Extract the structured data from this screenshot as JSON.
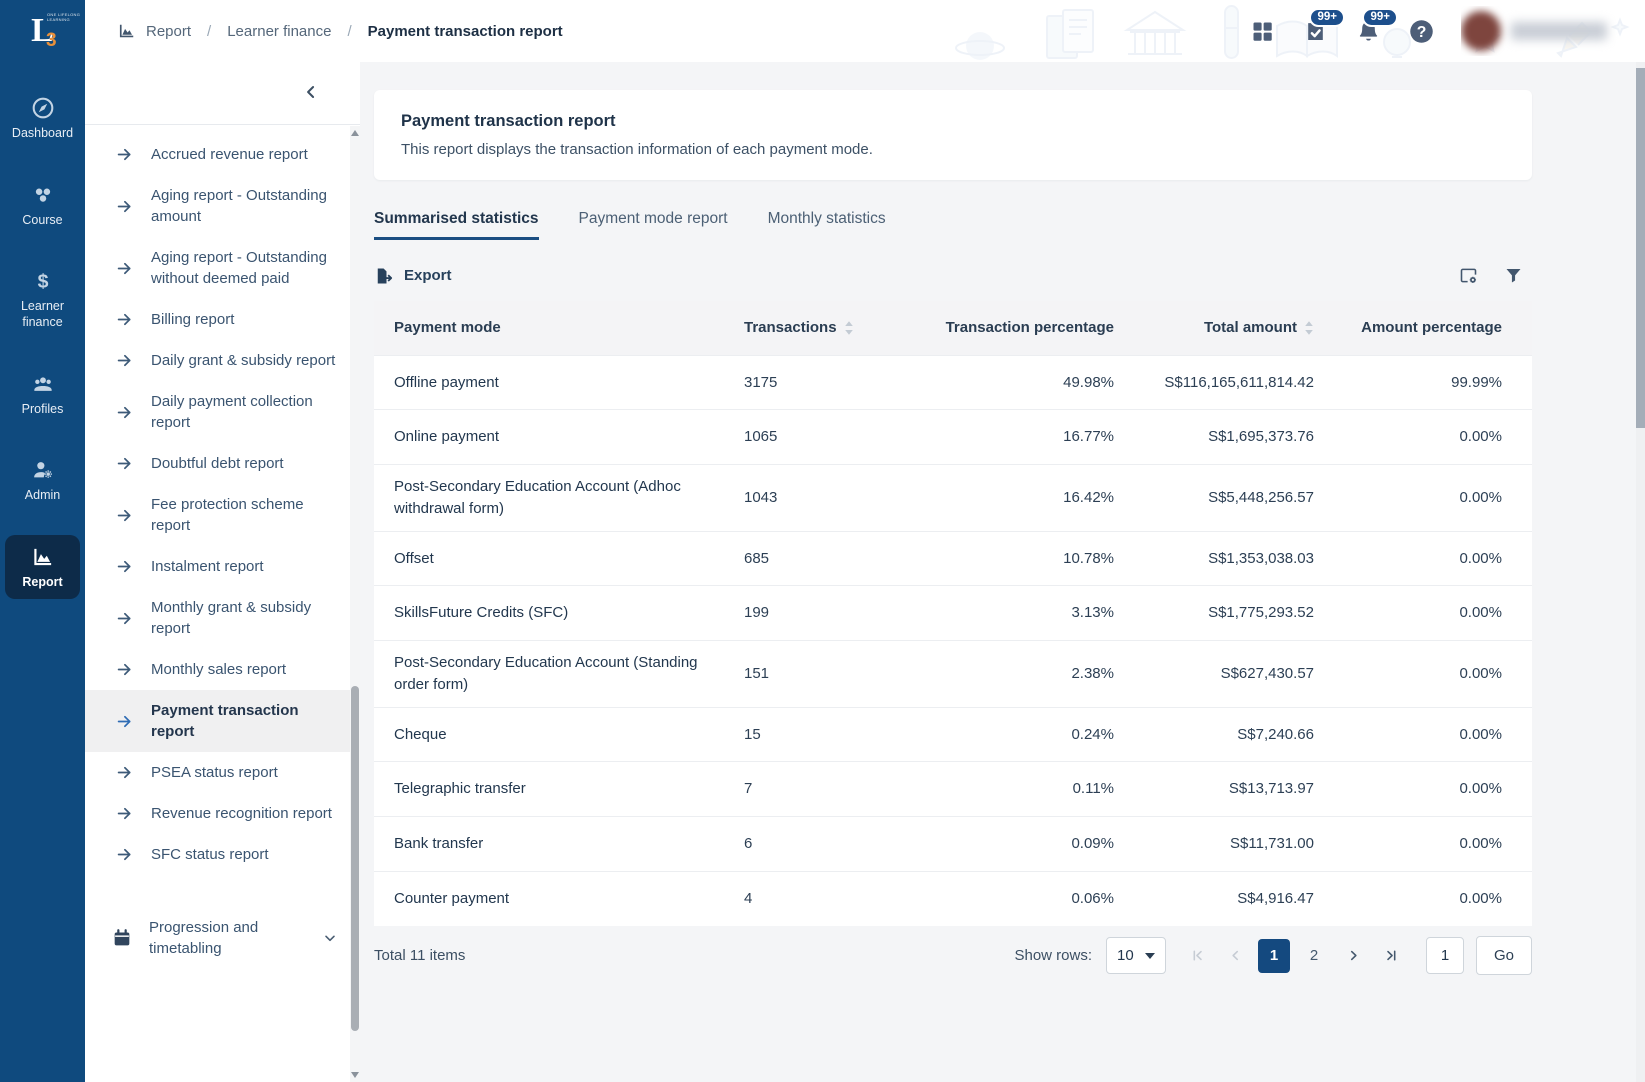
{
  "brand": {
    "logo_main": "L",
    "logo_accent": "3",
    "logo_lines": "ONE LIFELONG LEARNING"
  },
  "breadcrumb": {
    "separator": "/",
    "items": [
      {
        "label": "Report",
        "icon": "report-chart-icon",
        "current": false
      },
      {
        "label": "Learner finance",
        "current": false
      },
      {
        "label": "Payment transaction report",
        "current": true
      }
    ]
  },
  "topbar": {
    "task_badge": "99+",
    "bell_badge": "99+"
  },
  "rail": {
    "items": [
      {
        "label": "Dashboard",
        "icon": "compass-icon",
        "active": false
      },
      {
        "label": "Course",
        "icon": "course-icon",
        "active": false
      },
      {
        "label": "Learner finance",
        "icon": "dollar-icon",
        "active": false
      },
      {
        "label": "Profiles",
        "icon": "profiles-icon",
        "active": false
      },
      {
        "label": "Admin",
        "icon": "admin-icon",
        "active": false
      },
      {
        "label": "Report",
        "icon": "report-icon",
        "active": true
      }
    ]
  },
  "sidebar": {
    "items": [
      {
        "label": "Accrued revenue report",
        "active": false
      },
      {
        "label": "Aging report - Outstanding amount",
        "active": false
      },
      {
        "label": "Aging report - Outstanding without deemed paid",
        "active": false
      },
      {
        "label": "Billing report",
        "active": false
      },
      {
        "label": "Daily grant & subsidy report",
        "active": false
      },
      {
        "label": "Daily payment collection report",
        "active": false
      },
      {
        "label": "Doubtful debt report",
        "active": false
      },
      {
        "label": "Fee protection scheme report",
        "active": false
      },
      {
        "label": "Instalment report",
        "active": false
      },
      {
        "label": "Monthly grant & subsidy report",
        "active": false
      },
      {
        "label": "Monthly sales report",
        "active": false
      },
      {
        "label": "Payment transaction report",
        "active": true
      },
      {
        "label": "PSEA status report",
        "active": false
      },
      {
        "label": "Revenue recognition report",
        "active": false
      },
      {
        "label": "SFC status report",
        "active": false
      }
    ],
    "section": {
      "label": "Progression and timetabling"
    }
  },
  "page": {
    "title": "Payment transaction report",
    "description": "This report displays the transaction information of each payment mode."
  },
  "tabs": [
    {
      "label": "Summarised statistics",
      "active": true
    },
    {
      "label": "Payment mode report",
      "active": false
    },
    {
      "label": "Monthly statistics",
      "active": false
    }
  ],
  "toolbar": {
    "export_label": "Export"
  },
  "table": {
    "columns": [
      {
        "label": "Payment mode",
        "sortable": false
      },
      {
        "label": "Transactions",
        "sortable": true
      },
      {
        "label": "Transaction percentage",
        "sortable": false
      },
      {
        "label": "Total amount",
        "sortable": true
      },
      {
        "label": "Amount percentage",
        "sortable": false
      }
    ],
    "rows": [
      [
        "Offline payment",
        "3175",
        "49.98%",
        "S$116,165,611,814.42",
        "99.99%"
      ],
      [
        "Online payment",
        "1065",
        "16.77%",
        "S$1,695,373.76",
        "0.00%"
      ],
      [
        "Post-Secondary Education Account (Adhoc withdrawal form)",
        "1043",
        "16.42%",
        "S$5,448,256.57",
        "0.00%"
      ],
      [
        "Offset",
        "685",
        "10.78%",
        "S$1,353,038.03",
        "0.00%"
      ],
      [
        "SkillsFuture Credits (SFC)",
        "199",
        "3.13%",
        "S$1,775,293.52",
        "0.00%"
      ],
      [
        "Post-Secondary Education Account (Standing order form)",
        "151",
        "2.38%",
        "S$627,430.57",
        "0.00%"
      ],
      [
        "Cheque",
        "15",
        "0.24%",
        "S$7,240.66",
        "0.00%"
      ],
      [
        "Telegraphic transfer",
        "7",
        "0.11%",
        "S$13,713.97",
        "0.00%"
      ],
      [
        "Bank transfer",
        "6",
        "0.09%",
        "S$11,731.00",
        "0.00%"
      ],
      [
        "Counter payment",
        "4",
        "0.06%",
        "S$4,916.47",
        "0.00%"
      ]
    ]
  },
  "pagination": {
    "total_label": "Total 11 items",
    "show_rows_label": "Show rows:",
    "rows_per_page": "10",
    "pages": [
      "1",
      "2"
    ],
    "active_page": "1",
    "goto_value": "1",
    "go_label": "Go"
  },
  "colors": {
    "rail_bg": "#0F4A7E",
    "rail_active_bg": "#0D2B49",
    "accent": "#14497F",
    "badge_bg": "#1D4F8C",
    "tab_underline": "#1B4E82",
    "logo_accent": "#E8903A"
  }
}
